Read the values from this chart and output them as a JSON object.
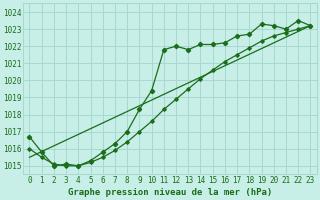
{
  "title": "Graphe pression niveau de la mer (hPa)",
  "bg_color": "#c8eee8",
  "grid_color": "#a8d8d0",
  "line_color": "#1a6e1a",
  "xlim": [
    -0.5,
    23.5
  ],
  "ylim": [
    1014.5,
    1024.5
  ],
  "yticks": [
    1015,
    1016,
    1017,
    1018,
    1019,
    1020,
    1021,
    1022,
    1023,
    1024
  ],
  "xticks": [
    0,
    1,
    2,
    3,
    4,
    5,
    6,
    7,
    8,
    9,
    10,
    11,
    12,
    13,
    14,
    15,
    16,
    17,
    18,
    19,
    20,
    21,
    22,
    23
  ],
  "series1_y": [
    1016.7,
    1015.8,
    1015.0,
    1015.1,
    1015.0,
    1015.3,
    1015.8,
    1016.3,
    1017.0,
    1018.3,
    1019.4,
    1021.8,
    1022.0,
    1021.8,
    1022.1,
    1022.1,
    1022.2,
    1022.6,
    1022.7,
    1023.3,
    1023.2,
    1023.0,
    1023.5,
    1023.2
  ],
  "series2_y": [
    1016.0,
    1015.5,
    1015.1,
    1015.0,
    1015.0,
    1015.2,
    1015.5,
    1015.9,
    1016.4,
    1017.0,
    1017.6,
    1018.3,
    1018.9,
    1019.5,
    1020.1,
    1020.6,
    1021.1,
    1021.5,
    1021.9,
    1022.3,
    1022.6,
    1022.8,
    1023.0,
    1023.2
  ],
  "trend_x": [
    0,
    23
  ],
  "trend_y": [
    1015.5,
    1023.2
  ]
}
